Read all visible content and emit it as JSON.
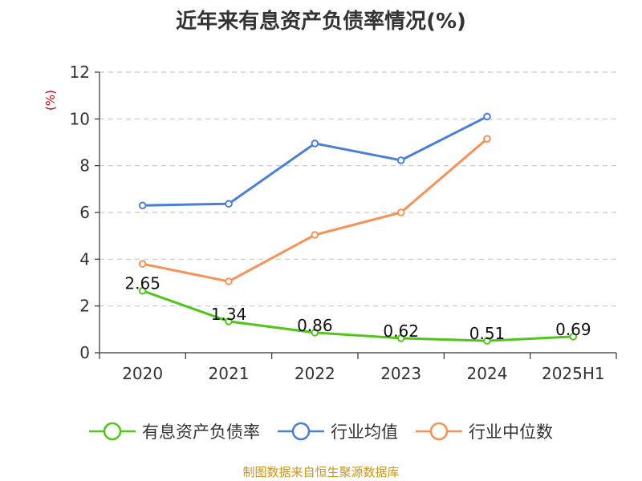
{
  "title": "近年来有息资产负债率情况(%)",
  "source": "制图数据来自恒生聚源数据库",
  "chart_data": {
    "type": "line",
    "title": "近年来有息资产负债率情况(%)",
    "xlabel": "",
    "ylabel": "(%)",
    "categories": [
      "2020",
      "2021",
      "2022",
      "2023",
      "2024",
      "2025H1"
    ],
    "ylim": [
      0,
      12
    ],
    "yticks": [
      0,
      2,
      4,
      6,
      8,
      10,
      12
    ],
    "grid": "horizontal-dashed",
    "legend_position": "bottom",
    "series": [
      {
        "name": "有息资产负债率",
        "color": "#52c41a",
        "values": [
          2.65,
          1.34,
          0.86,
          0.62,
          0.51,
          0.69
        ],
        "labels": [
          "2.65",
          "1.34",
          "0.86",
          "0.62",
          "0.51",
          "0.69"
        ],
        "show_labels": true
      },
      {
        "name": "行业均值",
        "color": "#4b7fd6",
        "values": [
          6.3,
          6.37,
          8.95,
          8.23,
          10.1,
          null
        ],
        "show_labels": false
      },
      {
        "name": "行业中位数",
        "color": "#f79158",
        "values": [
          3.8,
          3.05,
          5.04,
          6.0,
          9.15,
          null
        ],
        "show_labels": false
      }
    ]
  }
}
